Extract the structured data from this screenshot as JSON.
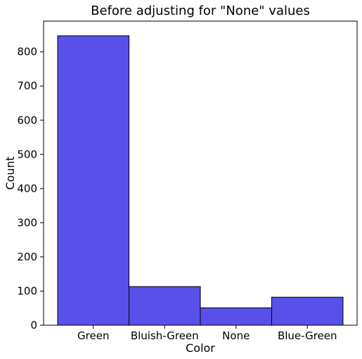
{
  "chart_data": {
    "type": "bar",
    "title": "Before adjusting for \"None\" values",
    "xlabel": "Color",
    "ylabel": "Count",
    "categories": [
      "Green",
      "Bluish-Green",
      "None",
      "Blue-Green"
    ],
    "values": [
      847,
      113,
      51,
      82
    ],
    "ylim": [
      0,
      890
    ],
    "yticks": [
      0,
      100,
      200,
      300,
      400,
      500,
      600,
      700,
      800
    ],
    "grid": false,
    "legend": "none",
    "bar_color": "#5850e8",
    "edge_color": "#000000"
  }
}
